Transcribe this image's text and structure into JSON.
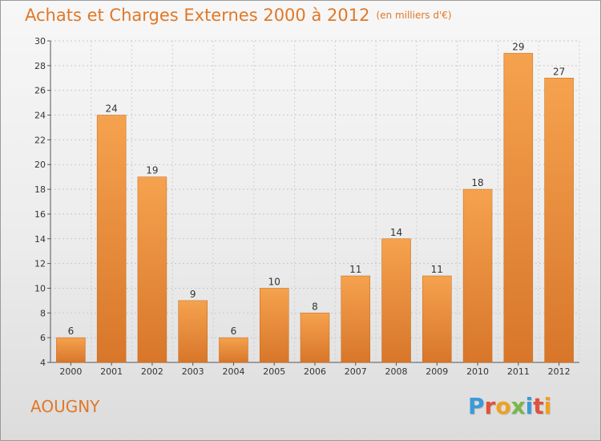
{
  "header": {
    "title": "Achats et Charges Externes 2000 à 2012",
    "unit": "(en milliers d'€)"
  },
  "footer": {
    "place": "AOUGNY",
    "logo_letters": [
      "P",
      "r",
      "o",
      "x",
      "i",
      "t",
      "i"
    ],
    "logo_colors": [
      "#3a9ad9",
      "#e0523a",
      "#f0a020",
      "#7ab648",
      "#3a9ad9",
      "#e0523a",
      "#f0a020"
    ]
  },
  "colors": {
    "title": "#e07828",
    "bar_light": "#f5a24e",
    "bar_dark": "#d8762a",
    "bar_edge": "#c46818"
  },
  "chart_data": {
    "type": "bar",
    "categories": [
      "2000",
      "2001",
      "2002",
      "2003",
      "2004",
      "2005",
      "2006",
      "2007",
      "2008",
      "2009",
      "2010",
      "2011",
      "2012"
    ],
    "values": [
      6,
      24,
      19,
      9,
      6,
      10,
      8,
      11,
      14,
      11,
      18,
      29,
      27
    ],
    "title": "Achats et Charges Externes 2000 à 2012",
    "xlabel": "",
    "ylabel": "",
    "ylim": [
      4,
      30
    ],
    "yticks": [
      4,
      6,
      8,
      10,
      12,
      14,
      16,
      18,
      20,
      22,
      24,
      26,
      28,
      30
    ],
    "grid": true,
    "legend": "none"
  }
}
